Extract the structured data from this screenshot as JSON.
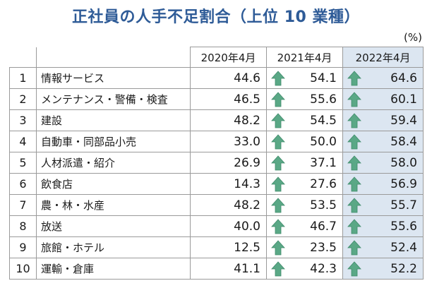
{
  "title": "正社員の人手不足割合（上位 10 業種）",
  "unit": "(%)",
  "columns": [
    "2020年4月",
    "2021年4月",
    "2022年4月"
  ],
  "colors": {
    "title": "#2e5b97",
    "highlight": "#dce6f1",
    "arrow": "#5aa886"
  },
  "rows": [
    {
      "rank": "1",
      "industry": "情報サービス",
      "y2020": "44.6",
      "y2021": "54.1",
      "y2022": "64.6"
    },
    {
      "rank": "2",
      "industry": "メンテナンス・警備・検査",
      "y2020": "46.5",
      "y2021": "55.6",
      "y2022": "60.1"
    },
    {
      "rank": "3",
      "industry": "建設",
      "y2020": "48.2",
      "y2021": "54.5",
      "y2022": "59.4"
    },
    {
      "rank": "4",
      "industry": "自動車・同部品小売",
      "y2020": "33.0",
      "y2021": "50.0",
      "y2022": "58.4"
    },
    {
      "rank": "5",
      "industry": "人材派遣・紹介",
      "y2020": "26.9",
      "y2021": "37.1",
      "y2022": "58.0"
    },
    {
      "rank": "6",
      "industry": "飲食店",
      "y2020": "14.3",
      "y2021": "27.6",
      "y2022": "56.9"
    },
    {
      "rank": "7",
      "industry": "農・林・水産",
      "y2020": "48.2",
      "y2021": "53.5",
      "y2022": "55.7"
    },
    {
      "rank": "8",
      "industry": "放送",
      "y2020": "40.0",
      "y2021": "46.7",
      "y2022": "55.6"
    },
    {
      "rank": "9",
      "industry": "旅館・ホテル",
      "y2020": "12.5",
      "y2021": "23.5",
      "y2022": "52.4"
    },
    {
      "rank": "10",
      "industry": "運輸・倉庫",
      "y2020": "41.1",
      "y2021": "42.3",
      "y2022": "52.2"
    }
  ]
}
